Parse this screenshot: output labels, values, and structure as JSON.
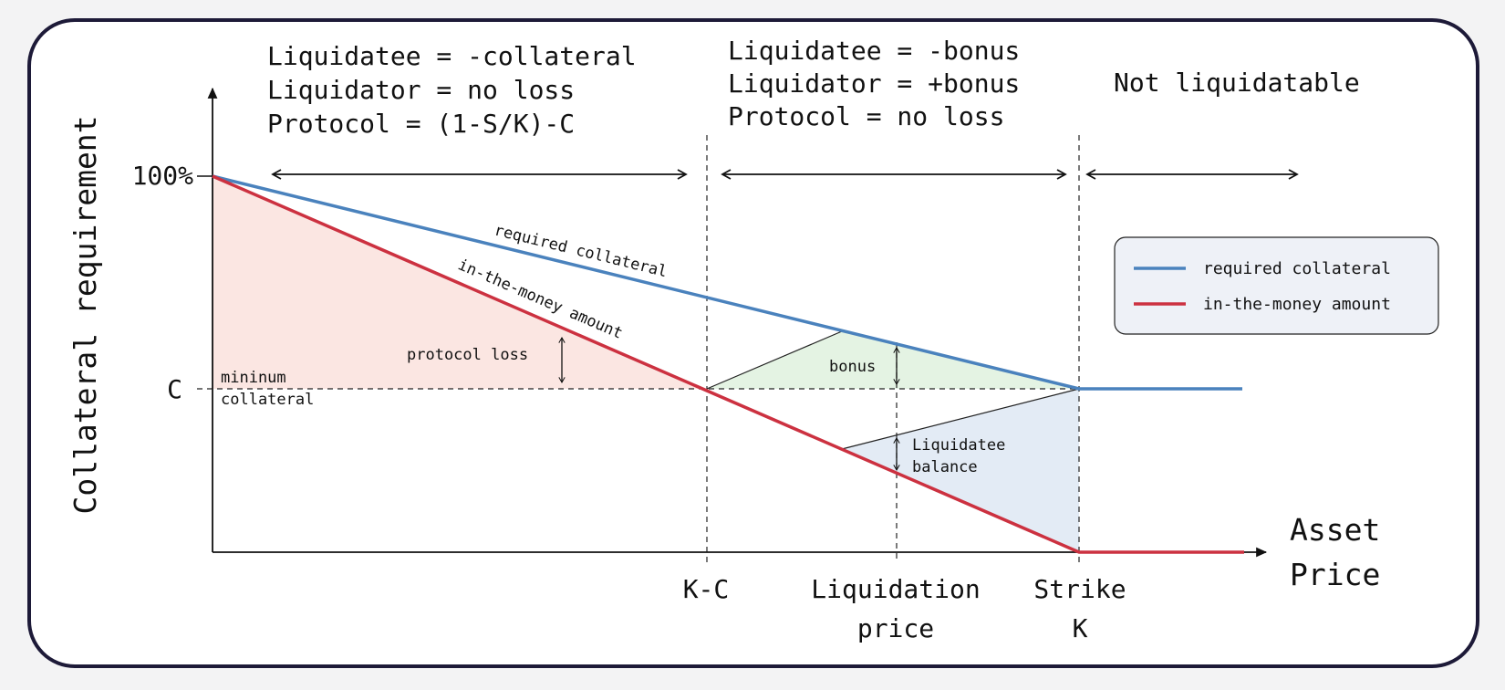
{
  "colors": {
    "required_collateral": "#4a82bd",
    "in_the_money": "#cc3140",
    "protocol_loss_fill": "#fbe6e2",
    "bonus_fill": "#e4f3e3",
    "liquidatee_fill": "#e3ebf5",
    "legend_bg": "#eef1f7",
    "frame_border": "#1d1a38"
  },
  "y_axis": {
    "label": "Collateral requirement",
    "ticks": [
      "100%",
      "C"
    ]
  },
  "x_axis": {
    "label_line1": "Asset",
    "label_line2": "Price",
    "marker_kc": "K-C",
    "marker_liq_line1": "Liquidation",
    "marker_liq_line2": "price",
    "marker_strike_line1": "Strike",
    "marker_strike_line2": "K"
  },
  "regions": [
    {
      "lines": [
        "Liquidatee = -collateral",
        "Liquidator = no loss",
        "Protocol = (1-S/K)-C"
      ]
    },
    {
      "lines": [
        "Liquidatee = -bonus",
        "Liquidator = +bonus",
        "Protocol = no loss"
      ]
    },
    {
      "lines": [
        "Not liquidatable"
      ]
    }
  ],
  "annotations": {
    "min_collateral_line1": "mininum",
    "min_collateral_line2": "collateral",
    "protocol_loss": "protocol loss",
    "bonus": "bonus",
    "liquidatee_balance_line1": "Liquidatee",
    "liquidatee_balance_line2": "balance",
    "curve_required": "required collateral",
    "curve_itm": "in-the-money amount"
  },
  "legend": [
    {
      "label": "required collateral",
      "color_key": "required_collateral"
    },
    {
      "label": "in-the-money amount",
      "color_key": "in_the_money"
    }
  ]
}
